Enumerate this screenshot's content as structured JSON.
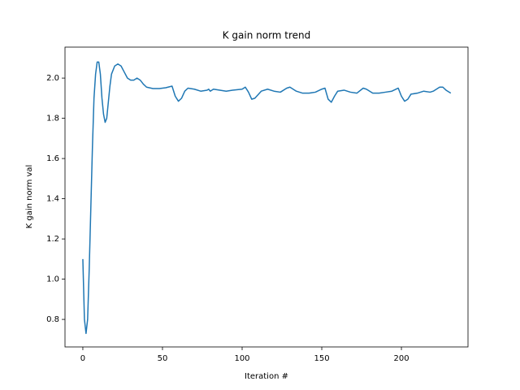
{
  "chart_data": {
    "type": "line",
    "title": "K gain norm trend",
    "x_label": "Iteration #",
    "y_label": "K gain norm val",
    "x": [
      0,
      1,
      2,
      3,
      4,
      5,
      6,
      7,
      8,
      9,
      10,
      11,
      12,
      13,
      14,
      15,
      16,
      17,
      18,
      20,
      22,
      24,
      26,
      28,
      30,
      32,
      34,
      36,
      38,
      40,
      44,
      48,
      52,
      56,
      58,
      60,
      62,
      64,
      66,
      70,
      74,
      78,
      79,
      80,
      82,
      86,
      90,
      94,
      100,
      102,
      104,
      106,
      108,
      112,
      116,
      120,
      124,
      128,
      130,
      134,
      138,
      142,
      146,
      150,
      152,
      154,
      156,
      158,
      160,
      164,
      168,
      172,
      176,
      178,
      182,
      186,
      190,
      194,
      198,
      200,
      202,
      204,
      206,
      210,
      214,
      218,
      220,
      224,
      226,
      228,
      231
    ],
    "series": [
      {
        "color": "#1f77b4",
        "values": [
          1.1,
          0.8,
          0.73,
          0.8,
          1.05,
          1.35,
          1.65,
          1.9,
          2.02,
          2.08,
          2.08,
          2.02,
          1.9,
          1.82,
          1.78,
          1.8,
          1.88,
          1.96,
          2.02,
          2.06,
          2.07,
          2.06,
          2.03,
          2.0,
          1.99,
          1.99,
          2.0,
          1.99,
          1.97,
          1.955,
          1.948,
          1.948,
          1.952,
          1.96,
          1.91,
          1.885,
          1.9,
          1.935,
          1.95,
          1.945,
          1.935,
          1.94,
          1.945,
          1.935,
          1.945,
          1.94,
          1.935,
          1.94,
          1.945,
          1.955,
          1.93,
          1.895,
          1.9,
          1.935,
          1.945,
          1.935,
          1.93,
          1.95,
          1.955,
          1.935,
          1.925,
          1.925,
          1.93,
          1.945,
          1.95,
          1.895,
          1.88,
          1.91,
          1.935,
          1.94,
          1.93,
          1.925,
          1.95,
          1.945,
          1.925,
          1.925,
          1.93,
          1.935,
          1.95,
          1.91,
          1.885,
          1.895,
          1.92,
          1.925,
          1.935,
          1.93,
          1.935,
          1.955,
          1.955,
          1.94,
          1.925
        ]
      }
    ],
    "xlim": [
      -11.2,
      241.8
    ],
    "ylim": [
      0.663,
      2.154
    ],
    "xticks": [
      0,
      50,
      100,
      150,
      200
    ],
    "yticks": [
      {
        "value": 0.8,
        "label": "0.8"
      },
      {
        "value": 1.0,
        "label": "1.0"
      },
      {
        "value": 1.2,
        "label": "1.2"
      },
      {
        "value": 1.4,
        "label": "1.4"
      },
      {
        "value": 1.6,
        "label": "1.6"
      },
      {
        "value": 1.8,
        "label": "1.8"
      },
      {
        "value": 2.0,
        "label": "2.0"
      }
    ]
  }
}
